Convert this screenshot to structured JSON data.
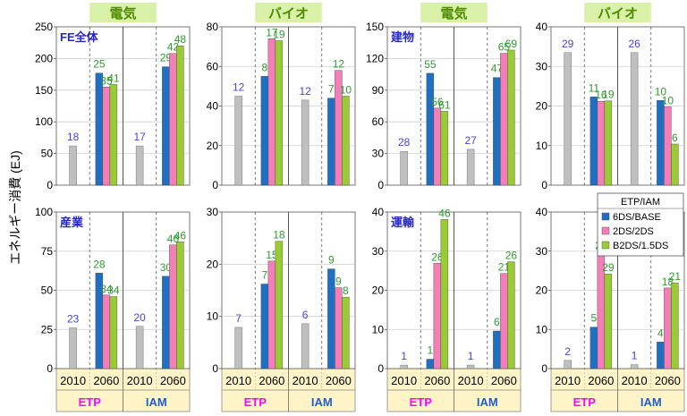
{
  "ylabel": "エネルギー消費 (EJ)",
  "colors": {
    "base_2010": "#bfbfbf",
    "6DS_BASE": "#1f6fc2",
    "2DS_2DS": "#f47eb8",
    "B2DS_1.5DS": "#99cc33",
    "header_bg": "#d8f0a8",
    "header_text": "#4f8c00",
    "footer_bg": "#fff4c8",
    "etp_text": "#ff00ff",
    "iam_text": "#1f5fc8",
    "sector_text": "#2626c8",
    "label_2010": "#4444dd",
    "label_green": "#2e9a2e"
  },
  "legend": {
    "title": "ETP/IAM",
    "entries": [
      "6DS/BASE",
      "2DS/2DS",
      "B2DS/1.5DS"
    ]
  },
  "columns": [
    {
      "header": "電気",
      "footer": {
        "years": [
          "2010",
          "2060",
          "2010",
          "2060"
        ],
        "groups": [
          "ETP",
          "IAM"
        ]
      }
    },
    {
      "header": "バイオ",
      "footer": {
        "years": [
          "2010",
          "2060",
          "2010",
          "2060"
        ],
        "groups": [
          "ETP",
          "IAM"
        ]
      }
    },
    {
      "header": "電気",
      "footer": {
        "years": [
          "2010",
          "2060",
          "2010",
          "2060"
        ],
        "groups": [
          "ETP",
          "IAM"
        ]
      }
    },
    {
      "header": "バイオ",
      "footer": {
        "years": [
          "2010",
          "2060",
          "2010",
          "2060"
        ],
        "groups": [
          "ETP",
          "IAM"
        ]
      }
    }
  ],
  "chart_data": [
    {
      "type": "bar",
      "sector": "FE全体",
      "carrier": "電気",
      "ylim": [
        0,
        250
      ],
      "yticks": [
        0,
        50,
        100,
        150,
        200,
        250
      ],
      "ETP": {
        "2010": 62,
        "2060": [
          177,
          155,
          159
        ]
      },
      "IAM": {
        "2010": 62,
        "2060": [
          187,
          208,
          220
        ]
      },
      "labels": {
        "ETP": {
          "2010": "18",
          "2060": [
            "25",
            "35",
            "41"
          ]
        },
        "IAM": {
          "2010": "17",
          "2060": [
            "29",
            "42",
            "48"
          ]
        }
      }
    },
    {
      "type": "bar",
      "sector": "",
      "carrier": "バイオ",
      "ylim": [
        0,
        80
      ],
      "yticks": [
        0,
        20,
        40,
        60,
        80
      ],
      "ETP": {
        "2010": 45,
        "2060": [
          55,
          74,
          73
        ]
      },
      "IAM": {
        "2010": 43,
        "2060": [
          44,
          58,
          45
        ]
      },
      "labels": {
        "ETP": {
          "2010": "12",
          "2060": [
            "8",
            "17",
            "19"
          ]
        },
        "IAM": {
          "2010": "12",
          "2060": [
            "7",
            "12",
            "10"
          ]
        }
      }
    },
    {
      "type": "bar",
      "sector": "建物",
      "carrier": "電気",
      "ylim": [
        0,
        150
      ],
      "yticks": [
        0,
        30,
        60,
        90,
        120,
        150
      ],
      "ETP": {
        "2010": 32,
        "2060": [
          106,
          73,
          70
        ]
      },
      "IAM": {
        "2010": 34,
        "2060": [
          102,
          125,
          128
        ]
      },
      "labels": {
        "ETP": {
          "2010": "28",
          "2060": [
            "55",
            "56",
            "61"
          ]
        },
        "IAM": {
          "2010": "27",
          "2060": [
            "47",
            "65",
            "69"
          ]
        }
      }
    },
    {
      "type": "bar",
      "sector": "",
      "carrier": "バイオ",
      "ylim": [
        0,
        40
      ],
      "yticks": [
        0,
        10,
        20,
        30,
        40
      ],
      "ETP": {
        "2010": 33.5,
        "2060": [
          22.3,
          21.2,
          21.3
        ]
      },
      "IAM": {
        "2010": 33.5,
        "2060": [
          21.4,
          19.8,
          10.4
        ]
      },
      "labels": {
        "ETP": {
          "2010": "29",
          "2060": [
            "11",
            "16",
            "19"
          ]
        },
        "IAM": {
          "2010": "26",
          "2060": [
            "10",
            "10",
            "6"
          ]
        }
      }
    },
    {
      "type": "bar",
      "sector": "産業",
      "carrier": "電気",
      "ylim": [
        0,
        100
      ],
      "yticks": [
        0,
        25,
        50,
        75,
        100
      ],
      "ETP": {
        "2010": 26,
        "2060": [
          61,
          47,
          46
        ]
      },
      "IAM": {
        "2010": 27,
        "2060": [
          59,
          79,
          81
        ]
      },
      "labels": {
        "ETP": {
          "2010": "23",
          "2060": [
            "28",
            "34",
            "34"
          ]
        },
        "IAM": {
          "2010": "20",
          "2060": [
            "30",
            "46",
            "46"
          ]
        }
      }
    },
    {
      "type": "bar",
      "sector": "",
      "carrier": "バイオ",
      "ylim": [
        0,
        30
      ],
      "yticks": [
        0,
        10,
        20,
        30
      ],
      "ETP": {
        "2010": 7.9,
        "2060": [
          16.2,
          20.6,
          24.4
        ]
      },
      "IAM": {
        "2010": 8.6,
        "2060": [
          19.1,
          15.5,
          13.7
        ]
      },
      "labels": {
        "ETP": {
          "2010": "7",
          "2060": [
            "7",
            "15",
            "18"
          ]
        },
        "IAM": {
          "2010": "6",
          "2060": [
            "9",
            "9",
            "8"
          ]
        }
      }
    },
    {
      "type": "bar",
      "sector": "運輸",
      "carrier": "電気",
      "ylim": [
        0,
        40
      ],
      "yticks": [
        0,
        10,
        20,
        30,
        40
      ],
      "ETP": {
        "2010": 0.9,
        "2060": [
          2.4,
          26.9,
          38.1
        ]
      },
      "IAM": {
        "2010": 0.9,
        "2060": [
          9.6,
          24.3,
          27.3
        ]
      },
      "labels": {
        "ETP": {
          "2010": "1",
          "2060": [
            "1",
            "26",
            "46"
          ]
        },
        "IAM": {
          "2010": "1",
          "2060": [
            "6",
            "21",
            "26"
          ]
        }
      }
    },
    {
      "type": "bar",
      "sector": "",
      "carrier": "バイオ",
      "ylim": [
        0,
        40
      ],
      "yticks": [
        0,
        10,
        20,
        30,
        40
      ],
      "ETP": {
        "2010": 2.1,
        "2060": [
          10.6,
          29.8,
          24.2
        ]
      },
      "IAM": {
        "2010": 1.0,
        "2060": [
          6.8,
          20.6,
          21.9
        ]
      },
      "labels": {
        "ETP": {
          "2010": "2",
          "2060": [
            "5",
            "29",
            "29"
          ]
        },
        "IAM": {
          "2010": "1",
          "2060": [
            "4",
            "18",
            "21"
          ]
        }
      }
    }
  ]
}
